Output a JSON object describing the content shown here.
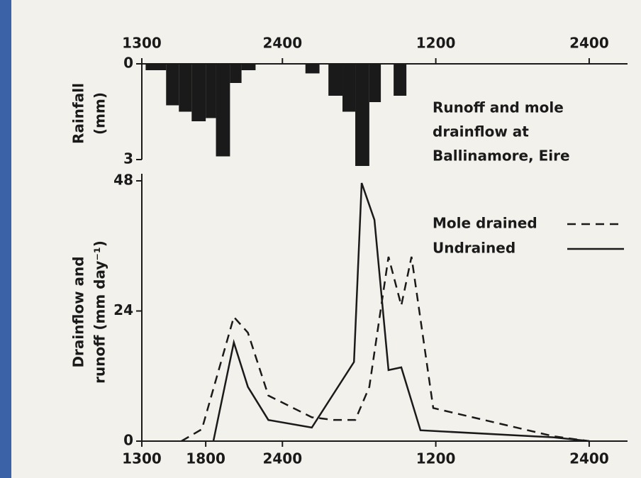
{
  "chart_data": [
    {
      "type": "histogram",
      "ylabel": [
        "Rainfall",
        "(mm)"
      ],
      "annotation": [
        "Runoff and mole",
        "drainflow at",
        "Ballinamore, Eire"
      ],
      "bins": [
        0.3,
        1.9,
        2.9,
        3.9,
        5.0,
        5.8,
        6.9,
        7.8,
        8.9,
        12.8,
        13.9,
        14.6,
        15.7,
        16.7,
        17.8,
        18.7,
        19.7,
        20.7
      ],
      "values": [
        0.2,
        1.3,
        1.5,
        1.8,
        1.7,
        2.9,
        0.6,
        0.2,
        0,
        0.3,
        0,
        1.0,
        1.5,
        3.2,
        1.2,
        0,
        1.0
      ],
      "color": "#1a1a1a",
      "xlim": [
        0,
        38
      ],
      "xticks": [
        {
          "value": 0,
          "label": "1300"
        },
        {
          "value": 11,
          "label": "2400"
        },
        {
          "value": 23,
          "label": "1200"
        },
        {
          "value": 35,
          "label": "2400"
        }
      ],
      "ylim": [
        0,
        3.2
      ],
      "yticks": [
        0,
        3
      ],
      "inverted": true
    },
    {
      "type": "line",
      "ylabel": [
        "Drainflow and",
        "runoff (mm day⁻¹)"
      ],
      "xlim": [
        0,
        38
      ],
      "xticks": [
        {
          "value": 0,
          "label": "1300"
        },
        {
          "value": 5,
          "label": "1800"
        },
        {
          "value": 11,
          "label": "2400"
        },
        {
          "value": 23,
          "label": "1200"
        },
        {
          "value": 35,
          "label": "2400"
        }
      ],
      "ylim": [
        0,
        48
      ],
      "yticks": [
        0,
        24,
        48
      ],
      "series": [
        {
          "name": "Mole drained",
          "color": "#1a1a1a",
          "dash": true,
          "x": [
            3.1,
            4.7,
            7.2,
            8.3,
            9.9,
            13.3,
            15.0,
            16.7,
            17.8,
            19.3,
            20.3,
            21.1,
            22.8,
            32.2,
            35.0
          ],
          "values": [
            0,
            2.2,
            22.9,
            20,
            8.4,
            4.4,
            3.9,
            3.9,
            10,
            34,
            25,
            34,
            6.1,
            0.9,
            0
          ]
        },
        {
          "name": "Undrained",
          "color": "#1a1a1a",
          "dash": false,
          "x": [
            5.6,
            7.2,
            8.3,
            9.9,
            13.3,
            16.6,
            17.2,
            18.2,
            19.3,
            20.3,
            21.8,
            32.2,
            35.0
          ],
          "values": [
            0,
            18.2,
            10,
            3.9,
            2.5,
            14.6,
            47.6,
            40.8,
            13.1,
            13.6,
            2,
            0.7,
            0
          ]
        }
      ]
    }
  ]
}
